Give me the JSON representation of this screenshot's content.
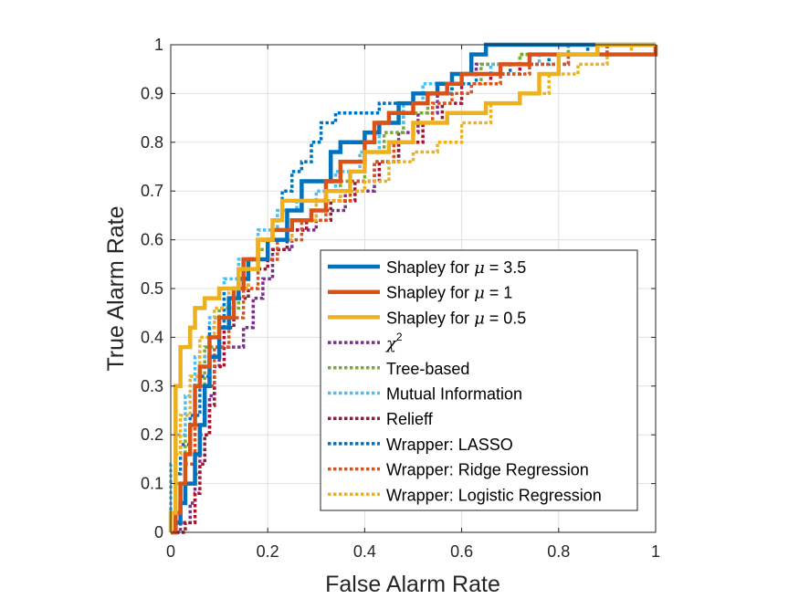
{
  "chart_data": {
    "type": "line",
    "title": "",
    "xlabel": "False Alarm Rate",
    "ylabel": "True Alarm Rate",
    "xlim": [
      0,
      1
    ],
    "ylim": [
      0,
      1
    ],
    "xticks": [
      0,
      0.2,
      0.4,
      0.6,
      0.8,
      1
    ],
    "yticks": [
      0,
      0.1,
      0.2,
      0.3,
      0.4,
      0.5,
      0.6,
      0.7,
      0.8,
      0.9,
      1
    ],
    "xtick_labels": [
      "0",
      "0.2",
      "0.4",
      "0.6",
      "0.8",
      "1"
    ],
    "ytick_labels": [
      "0",
      "0.1",
      "0.2",
      "0.3",
      "0.4",
      "0.5",
      "0.6",
      "0.7",
      "0.8",
      "0.9",
      "1"
    ],
    "grid": true,
    "legend_position": "bottom-right",
    "series": [
      {
        "name": "Shapley for μ = 3.5",
        "legend_label": {
          "prefix": "Shapley for ",
          "symbol": "μ",
          "suffix": " = 3.5"
        },
        "color": "#0072BD",
        "style": "solid",
        "points": [
          [
            0,
            0
          ],
          [
            0.01,
            0.02
          ],
          [
            0.02,
            0.06
          ],
          [
            0.03,
            0.1
          ],
          [
            0.05,
            0.16
          ],
          [
            0.06,
            0.22
          ],
          [
            0.07,
            0.3
          ],
          [
            0.08,
            0.36
          ],
          [
            0.1,
            0.42
          ],
          [
            0.12,
            0.48
          ],
          [
            0.14,
            0.52
          ],
          [
            0.16,
            0.56
          ],
          [
            0.2,
            0.6
          ],
          [
            0.24,
            0.66
          ],
          [
            0.27,
            0.72
          ],
          [
            0.3,
            0.72
          ],
          [
            0.33,
            0.78
          ],
          [
            0.35,
            0.8
          ],
          [
            0.38,
            0.8
          ],
          [
            0.4,
            0.82
          ],
          [
            0.43,
            0.84
          ],
          [
            0.47,
            0.88
          ],
          [
            0.5,
            0.9
          ],
          [
            0.55,
            0.92
          ],
          [
            0.58,
            0.94
          ],
          [
            0.61,
            0.94
          ],
          [
            0.62,
            0.98
          ],
          [
            0.65,
            1
          ],
          [
            1,
            1
          ]
        ]
      },
      {
        "name": "Shapley for μ = 1",
        "legend_label": {
          "prefix": "Shapley for ",
          "symbol": "μ",
          "suffix": " = 1"
        },
        "color": "#D95319",
        "style": "solid",
        "points": [
          [
            0,
            0
          ],
          [
            0.01,
            0.04
          ],
          [
            0.02,
            0.1
          ],
          [
            0.03,
            0.16
          ],
          [
            0.04,
            0.22
          ],
          [
            0.05,
            0.3
          ],
          [
            0.06,
            0.34
          ],
          [
            0.08,
            0.4
          ],
          [
            0.1,
            0.44
          ],
          [
            0.13,
            0.5
          ],
          [
            0.15,
            0.56
          ],
          [
            0.18,
            0.6
          ],
          [
            0.21,
            0.62
          ],
          [
            0.25,
            0.64
          ],
          [
            0.29,
            0.66
          ],
          [
            0.32,
            0.72
          ],
          [
            0.35,
            0.76
          ],
          [
            0.4,
            0.8
          ],
          [
            0.42,
            0.84
          ],
          [
            0.45,
            0.86
          ],
          [
            0.5,
            0.88
          ],
          [
            0.53,
            0.9
          ],
          [
            0.57,
            0.92
          ],
          [
            0.6,
            0.94
          ],
          [
            0.65,
            0.94
          ],
          [
            0.68,
            0.96
          ],
          [
            0.74,
            0.98
          ],
          [
            0.87,
            0.98
          ],
          [
            0.97,
            0.98
          ],
          [
            1,
            1
          ]
        ]
      },
      {
        "name": "Shapley for μ = 0.5",
        "legend_label": {
          "prefix": "Shapley for ",
          "symbol": "μ",
          "suffix": " = 0.5"
        },
        "color": "#EDB120",
        "style": "solid",
        "points": [
          [
            0,
            0
          ],
          [
            0,
            0.04
          ],
          [
            0.01,
            0.3
          ],
          [
            0.02,
            0.38
          ],
          [
            0.04,
            0.42
          ],
          [
            0.05,
            0.46
          ],
          [
            0.07,
            0.48
          ],
          [
            0.1,
            0.5
          ],
          [
            0.14,
            0.54
          ],
          [
            0.18,
            0.6
          ],
          [
            0.21,
            0.64
          ],
          [
            0.23,
            0.68
          ],
          [
            0.28,
            0.68
          ],
          [
            0.32,
            0.7
          ],
          [
            0.37,
            0.74
          ],
          [
            0.4,
            0.78
          ],
          [
            0.45,
            0.8
          ],
          [
            0.5,
            0.84
          ],
          [
            0.57,
            0.86
          ],
          [
            0.65,
            0.88
          ],
          [
            0.72,
            0.9
          ],
          [
            0.76,
            0.94
          ],
          [
            0.8,
            0.98
          ],
          [
            0.88,
            1
          ],
          [
            1,
            1
          ]
        ]
      },
      {
        "name": "χ2",
        "legend_label": {
          "prefix": "",
          "symbol": "χ",
          "sup": "2",
          "suffix": ""
        },
        "color": "#7E2F8E",
        "style": "dotted",
        "points": [
          [
            0,
            0
          ],
          [
            0.02,
            0.02
          ],
          [
            0.04,
            0.06
          ],
          [
            0.05,
            0.12
          ],
          [
            0.06,
            0.2
          ],
          [
            0.08,
            0.28
          ],
          [
            0.09,
            0.34
          ],
          [
            0.1,
            0.38
          ],
          [
            0.15,
            0.42
          ],
          [
            0.17,
            0.48
          ],
          [
            0.19,
            0.52
          ],
          [
            0.21,
            0.58
          ],
          [
            0.25,
            0.62
          ],
          [
            0.3,
            0.66
          ],
          [
            0.36,
            0.7
          ],
          [
            0.42,
            0.76
          ],
          [
            0.47,
            0.82
          ],
          [
            0.51,
            0.86
          ],
          [
            0.55,
            0.9
          ],
          [
            0.58,
            0.94
          ],
          [
            0.63,
            0.96
          ],
          [
            0.72,
            0.98
          ],
          [
            0.82,
            1
          ],
          [
            1,
            1
          ]
        ]
      },
      {
        "name": "Tree-based",
        "legend_label": {
          "prefix": "Tree-based",
          "symbol": "",
          "suffix": ""
        },
        "color": "#77AC30",
        "style": "dotted",
        "points": [
          [
            0,
            0
          ],
          [
            0.01,
            0.1
          ],
          [
            0.03,
            0.2
          ],
          [
            0.05,
            0.3
          ],
          [
            0.07,
            0.38
          ],
          [
            0.1,
            0.46
          ],
          [
            0.14,
            0.54
          ],
          [
            0.18,
            0.58
          ],
          [
            0.24,
            0.64
          ],
          [
            0.3,
            0.68
          ],
          [
            0.35,
            0.72
          ],
          [
            0.4,
            0.78
          ],
          [
            0.44,
            0.82
          ],
          [
            0.48,
            0.86
          ],
          [
            0.53,
            0.9
          ],
          [
            0.58,
            0.92
          ],
          [
            0.64,
            0.96
          ],
          [
            0.72,
            0.98
          ],
          [
            0.82,
            1
          ],
          [
            1,
            1
          ]
        ]
      },
      {
        "name": "Mutual Information",
        "legend_label": {
          "prefix": "Mutual Information",
          "symbol": "",
          "suffix": ""
        },
        "color": "#4DBEEE",
        "style": "dotted",
        "points": [
          [
            0,
            0
          ],
          [
            0,
            0.14
          ],
          [
            0.01,
            0.2
          ],
          [
            0.03,
            0.28
          ],
          [
            0.05,
            0.36
          ],
          [
            0.08,
            0.44
          ],
          [
            0.11,
            0.52
          ],
          [
            0.14,
            0.56
          ],
          [
            0.18,
            0.62
          ],
          [
            0.22,
            0.66
          ],
          [
            0.26,
            0.68
          ],
          [
            0.3,
            0.7
          ],
          [
            0.34,
            0.74
          ],
          [
            0.39,
            0.78
          ],
          [
            0.43,
            0.84
          ],
          [
            0.48,
            0.88
          ],
          [
            0.52,
            0.92
          ],
          [
            0.58,
            0.94
          ],
          [
            0.66,
            0.96
          ],
          [
            0.76,
            0.98
          ],
          [
            0.86,
            1
          ],
          [
            1,
            1
          ]
        ]
      },
      {
        "name": "Relieff",
        "legend_label": {
          "prefix": "Relieff",
          "symbol": "",
          "suffix": ""
        },
        "color": "#A2142F",
        "style": "dotted",
        "points": [
          [
            0,
            0
          ],
          [
            0.03,
            0.02
          ],
          [
            0.05,
            0.08
          ],
          [
            0.06,
            0.14
          ],
          [
            0.07,
            0.2
          ],
          [
            0.08,
            0.26
          ],
          [
            0.09,
            0.34
          ],
          [
            0.11,
            0.42
          ],
          [
            0.13,
            0.48
          ],
          [
            0.16,
            0.54
          ],
          [
            0.2,
            0.58
          ],
          [
            0.24,
            0.62
          ],
          [
            0.28,
            0.64
          ],
          [
            0.33,
            0.68
          ],
          [
            0.38,
            0.72
          ],
          [
            0.43,
            0.76
          ],
          [
            0.47,
            0.8
          ],
          [
            0.52,
            0.84
          ],
          [
            0.56,
            0.88
          ],
          [
            0.6,
            0.92
          ],
          [
            0.66,
            0.94
          ],
          [
            0.72,
            0.96
          ],
          [
            0.82,
            0.98
          ],
          [
            0.9,
            1
          ],
          [
            1,
            1
          ]
        ]
      },
      {
        "name": "Wrapper: LASSO",
        "legend_label": {
          "prefix": "Wrapper: LASSO",
          "symbol": "",
          "suffix": ""
        },
        "color": "#0072BD",
        "style": "dotted",
        "points": [
          [
            0,
            0
          ],
          [
            0.01,
            0.12
          ],
          [
            0.02,
            0.18
          ],
          [
            0.04,
            0.24
          ],
          [
            0.06,
            0.32
          ],
          [
            0.08,
            0.42
          ],
          [
            0.11,
            0.5
          ],
          [
            0.14,
            0.54
          ],
          [
            0.18,
            0.6
          ],
          [
            0.21,
            0.64
          ],
          [
            0.23,
            0.7
          ],
          [
            0.25,
            0.74
          ],
          [
            0.27,
            0.76
          ],
          [
            0.29,
            0.8
          ],
          [
            0.31,
            0.84
          ],
          [
            0.34,
            0.86
          ],
          [
            0.4,
            0.86
          ],
          [
            0.43,
            0.88
          ],
          [
            0.48,
            0.88
          ],
          [
            0.53,
            0.9
          ],
          [
            0.58,
            0.92
          ],
          [
            0.63,
            0.94
          ],
          [
            0.7,
            0.96
          ],
          [
            0.78,
            0.98
          ],
          [
            0.86,
            1
          ],
          [
            1,
            1
          ]
        ]
      },
      {
        "name": "Wrapper: Ridge Regression",
        "legend_label": {
          "prefix": "Wrapper: Ridge Regression",
          "symbol": "",
          "suffix": ""
        },
        "color": "#D95319",
        "style": "dotted",
        "points": [
          [
            0,
            0
          ],
          [
            0.01,
            0.06
          ],
          [
            0.03,
            0.14
          ],
          [
            0.05,
            0.22
          ],
          [
            0.07,
            0.3
          ],
          [
            0.09,
            0.38
          ],
          [
            0.12,
            0.44
          ],
          [
            0.15,
            0.5
          ],
          [
            0.18,
            0.56
          ],
          [
            0.22,
            0.6
          ],
          [
            0.27,
            0.64
          ],
          [
            0.32,
            0.68
          ],
          [
            0.37,
            0.72
          ],
          [
            0.42,
            0.76
          ],
          [
            0.46,
            0.8
          ],
          [
            0.5,
            0.84
          ],
          [
            0.54,
            0.88
          ],
          [
            0.58,
            0.9
          ],
          [
            0.62,
            0.92
          ],
          [
            0.68,
            0.94
          ],
          [
            0.74,
            0.96
          ],
          [
            0.82,
            0.98
          ],
          [
            0.9,
            1
          ],
          [
            1,
            1
          ]
        ]
      },
      {
        "name": "Wrapper: Logistic Regression",
        "legend_label": {
          "prefix": "Wrapper: Logistic Regression",
          "symbol": "",
          "suffix": ""
        },
        "color": "#EDB120",
        "style": "dotted",
        "points": [
          [
            0,
            0
          ],
          [
            0.01,
            0.16
          ],
          [
            0.02,
            0.24
          ],
          [
            0.04,
            0.32
          ],
          [
            0.06,
            0.4
          ],
          [
            0.09,
            0.46
          ],
          [
            0.12,
            0.5
          ],
          [
            0.16,
            0.56
          ],
          [
            0.2,
            0.6
          ],
          [
            0.25,
            0.64
          ],
          [
            0.3,
            0.68
          ],
          [
            0.35,
            0.7
          ],
          [
            0.4,
            0.72
          ],
          [
            0.45,
            0.76
          ],
          [
            0.5,
            0.78
          ],
          [
            0.55,
            0.8
          ],
          [
            0.6,
            0.84
          ],
          [
            0.66,
            0.88
          ],
          [
            0.72,
            0.9
          ],
          [
            0.78,
            0.94
          ],
          [
            0.84,
            0.96
          ],
          [
            0.9,
            0.98
          ],
          [
            0.95,
            1
          ],
          [
            1,
            1
          ]
        ]
      }
    ]
  }
}
